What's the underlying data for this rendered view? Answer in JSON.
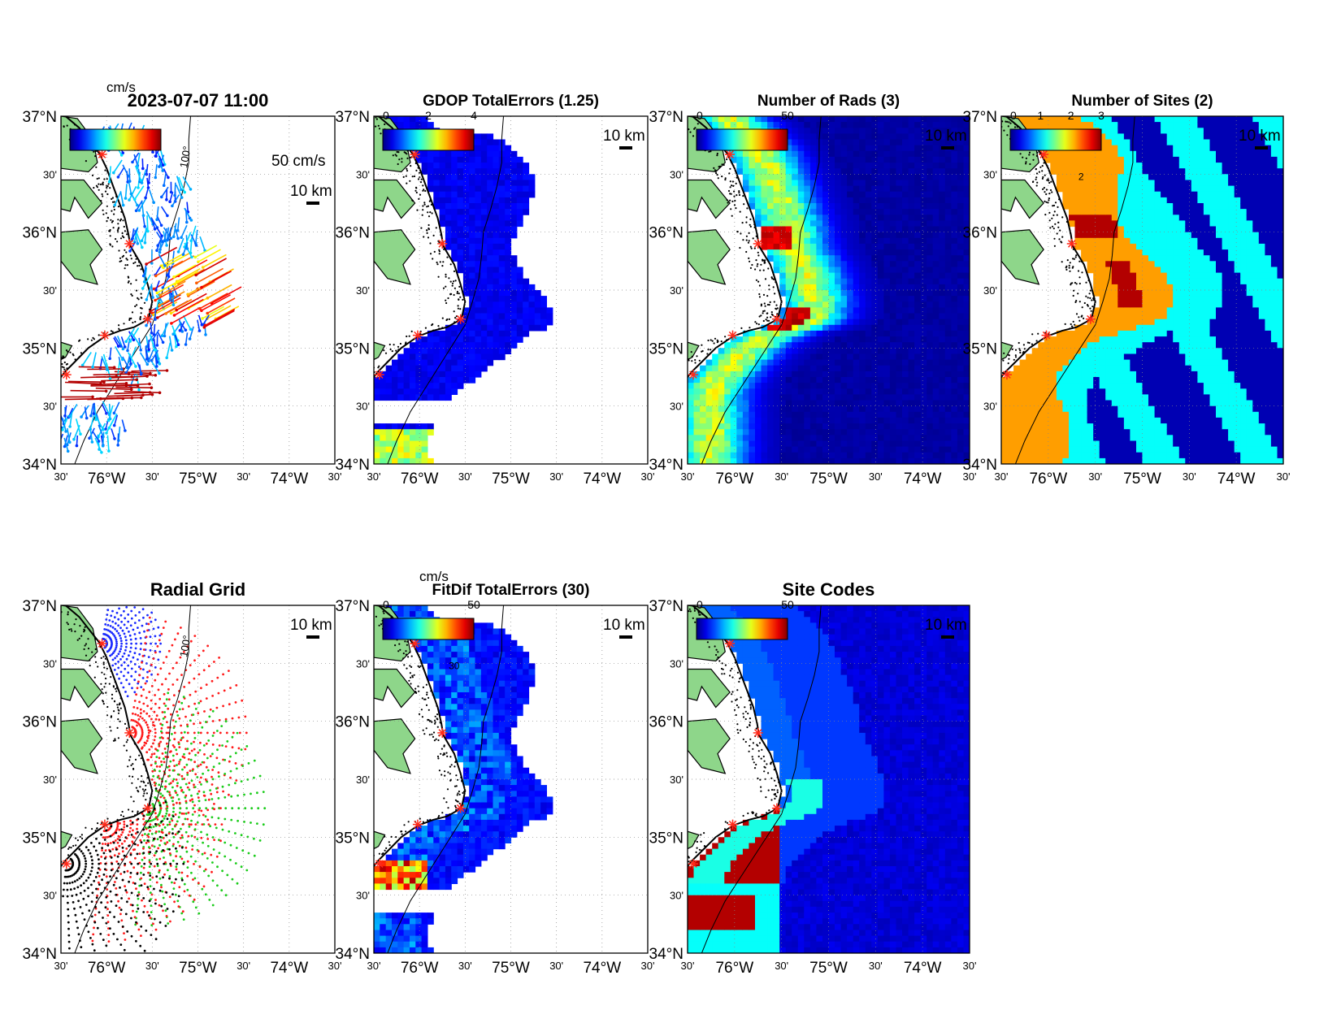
{
  "figure": {
    "timestamp": "2023-07-07 11:00",
    "panels": [
      {
        "id": "vectors",
        "title": "2023-07-07 11:00",
        "kind": "vectors",
        "colorbar": {
          "unit": "cm/s",
          "ticks": []
        },
        "annotations": {
          "speed_scale": "50 cm/s",
          "distance_scale": "10 km",
          "isobath": "100"
        }
      },
      {
        "id": "gdop",
        "title": "GDOP TotalErrors (1.25)",
        "kind": "field",
        "colorbar": {
          "ticks": [
            "0",
            "2",
            "4"
          ]
        },
        "annotations": {
          "distance_scale": "10 km"
        }
      },
      {
        "id": "nrads",
        "title": "Number of Rads (3)",
        "kind": "field",
        "colorbar": {
          "ticks": [
            "0",
            "50"
          ]
        },
        "annotations": {
          "distance_scale": "10 km"
        }
      },
      {
        "id": "nsites",
        "title": "Number of Sites (2)",
        "kind": "field",
        "colorbar": {
          "ticks": [
            "0",
            "1",
            "2",
            "3"
          ]
        },
        "annotations": {
          "distance_scale": "10 km",
          "contour_label": "2"
        }
      },
      {
        "id": "radgrid",
        "title": "Radial Grid",
        "kind": "grid",
        "annotations": {
          "distance_scale": "10 km",
          "isobath": "100"
        }
      },
      {
        "id": "fitdif",
        "title": "FitDif TotalErrors (30)",
        "kind": "field",
        "colorbar": {
          "unit": "cm/s",
          "ticks": [
            "0",
            "50"
          ]
        },
        "annotations": {
          "distance_scale": "10 km",
          "contour_label": "30"
        }
      },
      {
        "id": "sitecodes",
        "title": "Site Codes",
        "kind": "field",
        "colorbar": {
          "ticks": [
            "0",
            "50"
          ]
        },
        "annotations": {
          "distance_scale": "10 km"
        }
      }
    ],
    "axes": {
      "lat_ticks": [
        "37°N",
        "30'",
        "36°N",
        "30'",
        "35°N",
        "30'",
        "34°N"
      ],
      "lon_ticks": [
        "30'",
        "76°W",
        "30'",
        "75°W",
        "30'",
        "74°W",
        "30'"
      ],
      "lat_range": [
        34,
        37
      ],
      "lon_range": [
        -76.5,
        -73.5
      ]
    },
    "sites": [
      {
        "lon": -76.05,
        "lat": 36.67
      },
      {
        "lon": -75.75,
        "lat": 35.9
      },
      {
        "lon": -75.55,
        "lat": 35.25
      },
      {
        "lon": -76.02,
        "lat": 35.11
      },
      {
        "lon": -76.44,
        "lat": 34.77
      }
    ],
    "colors": {
      "land": "#8ed68a",
      "ocean_background": "#ffffff",
      "deep_blue": "#00008f",
      "site_marker": "#ff2a1a",
      "grid_site_colors": [
        "#1a2aff",
        "#ff1a1a",
        "#1acc1a",
        "#ff1a1a",
        "#000000"
      ]
    }
  }
}
